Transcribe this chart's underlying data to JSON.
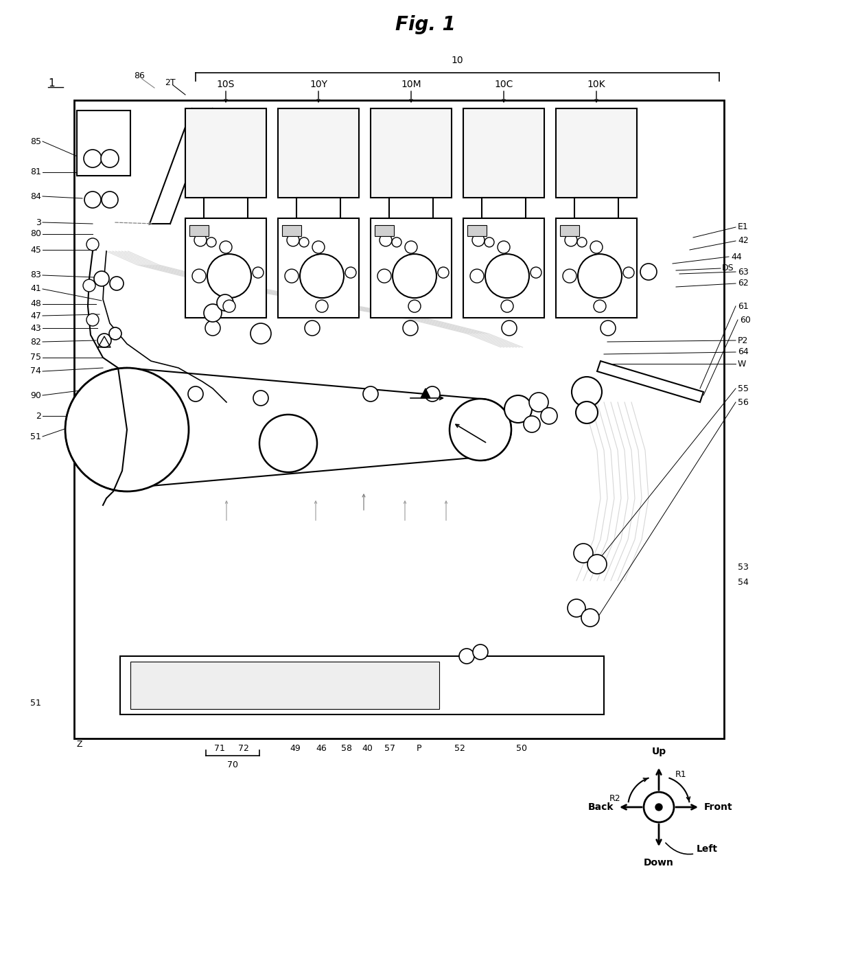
{
  "title": "Fig. 1",
  "bg_color": "#ffffff",
  "line_color": "#000000",
  "fig_width": 12.4,
  "fig_height": 14.06,
  "dpi": 100,
  "unit_labels": [
    "10S",
    "10Y",
    "10M",
    "10C",
    "10K"
  ],
  "bottom_labels": [
    [
      320,
      "71"
    ],
    [
      355,
      "72"
    ],
    [
      430,
      "49"
    ],
    [
      468,
      "46"
    ],
    [
      505,
      "58"
    ],
    [
      535,
      "40"
    ],
    [
      568,
      "57"
    ],
    [
      610,
      "P"
    ],
    [
      670,
      "52"
    ],
    [
      760,
      "50"
    ]
  ]
}
